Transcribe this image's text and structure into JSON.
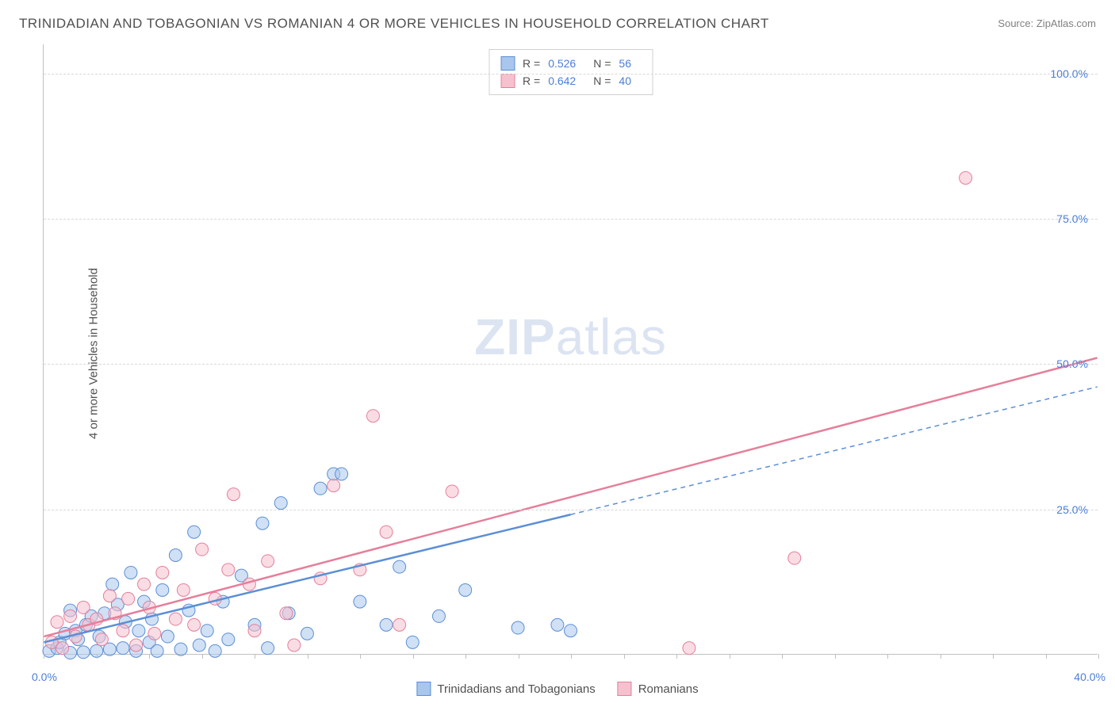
{
  "title": "TRINIDADIAN AND TOBAGONIAN VS ROMANIAN 4 OR MORE VEHICLES IN HOUSEHOLD CORRELATION CHART",
  "source": {
    "label": "Source:",
    "value": "ZipAtlas.com"
  },
  "y_axis_label": "4 or more Vehicles in Household",
  "watermark": {
    "bold": "ZIP",
    "light": "atlas"
  },
  "chart": {
    "type": "scatter",
    "background_color": "#ffffff",
    "grid_color": "#d8d8d8",
    "axis_color": "#c0c0c0",
    "label_color": "#4a7fd8",
    "xlim": [
      0,
      40
    ],
    "ylim": [
      0,
      105
    ],
    "x_ticks": [
      0,
      40
    ],
    "x_tick_labels": [
      "0.0%",
      "40.0%"
    ],
    "x_minor_tick_step": 2,
    "y_ticks": [
      25,
      50,
      75,
      100
    ],
    "y_tick_labels": [
      "25.0%",
      "50.0%",
      "75.0%",
      "100.0%"
    ],
    "marker_radius": 8,
    "marker_opacity": 0.55,
    "line_width": 2.5,
    "series": [
      {
        "name": "Trinidadians and Tobagonians",
        "color_fill": "#a9c6ec",
        "color_stroke": "#5b8fd6",
        "r_value": "0.526",
        "n_value": "56",
        "trend": {
          "x1": 0,
          "y1": 2,
          "x2": 20,
          "y2": 24,
          "x2_ext": 40,
          "y2_ext": 46,
          "dashed_after": 20
        },
        "points": [
          [
            0.2,
            0.5
          ],
          [
            0.5,
            1.0
          ],
          [
            0.6,
            2.0
          ],
          [
            0.8,
            3.5
          ],
          [
            1.0,
            0.2
          ],
          [
            1.2,
            4.0
          ],
          [
            1.3,
            2.5
          ],
          [
            1.5,
            0.3
          ],
          [
            1.6,
            5.0
          ],
          [
            1.8,
            6.5
          ],
          [
            2.0,
            0.5
          ],
          [
            2.1,
            3.0
          ],
          [
            2.3,
            7.0
          ],
          [
            2.5,
            0.8
          ],
          [
            2.6,
            12.0
          ],
          [
            2.8,
            8.5
          ],
          [
            3.0,
            1.0
          ],
          [
            3.1,
            5.5
          ],
          [
            3.3,
            14.0
          ],
          [
            3.5,
            0.5
          ],
          [
            3.6,
            4.0
          ],
          [
            3.8,
            9.0
          ],
          [
            4.0,
            2.0
          ],
          [
            4.1,
            6.0
          ],
          [
            4.3,
            0.5
          ],
          [
            4.5,
            11.0
          ],
          [
            4.7,
            3.0
          ],
          [
            5.0,
            17.0
          ],
          [
            5.2,
            0.8
          ],
          [
            5.5,
            7.5
          ],
          [
            5.7,
            21.0
          ],
          [
            5.9,
            1.5
          ],
          [
            6.2,
            4.0
          ],
          [
            6.5,
            0.5
          ],
          [
            6.8,
            9.0
          ],
          [
            7.0,
            2.5
          ],
          [
            7.5,
            13.5
          ],
          [
            8.0,
            5.0
          ],
          [
            8.3,
            22.5
          ],
          [
            8.5,
            1.0
          ],
          [
            9.0,
            26.0
          ],
          [
            9.3,
            7.0
          ],
          [
            10.0,
            3.5
          ],
          [
            10.5,
            28.5
          ],
          [
            11.0,
            31.0
          ],
          [
            11.3,
            31.0
          ],
          [
            12.0,
            9.0
          ],
          [
            13.0,
            5.0
          ],
          [
            13.5,
            15.0
          ],
          [
            14.0,
            2.0
          ],
          [
            15.0,
            6.5
          ],
          [
            16.0,
            11.0
          ],
          [
            18.0,
            4.5
          ],
          [
            19.5,
            5.0
          ],
          [
            20.0,
            4.0
          ],
          [
            1.0,
            7.5
          ]
        ]
      },
      {
        "name": "Romanians",
        "color_fill": "#f6c1ce",
        "color_stroke": "#e57f9b",
        "r_value": "0.642",
        "n_value": "40",
        "trend": {
          "x1": 0,
          "y1": 3,
          "x2": 40,
          "y2": 51,
          "dashed_after": null
        },
        "points": [
          [
            0.3,
            2.0
          ],
          [
            0.5,
            5.5
          ],
          [
            0.7,
            1.0
          ],
          [
            1.0,
            6.5
          ],
          [
            1.2,
            3.0
          ],
          [
            1.5,
            8.0
          ],
          [
            1.7,
            5.0
          ],
          [
            2.0,
            6.0
          ],
          [
            2.2,
            2.5
          ],
          [
            2.5,
            10.0
          ],
          [
            2.7,
            7.0
          ],
          [
            3.0,
            4.0
          ],
          [
            3.2,
            9.5
          ],
          [
            3.5,
            1.5
          ],
          [
            3.8,
            12.0
          ],
          [
            4.0,
            8.0
          ],
          [
            4.2,
            3.5
          ],
          [
            4.5,
            14.0
          ],
          [
            5.0,
            6.0
          ],
          [
            5.3,
            11.0
          ],
          [
            5.7,
            5.0
          ],
          [
            6.0,
            18.0
          ],
          [
            6.5,
            9.5
          ],
          [
            7.0,
            14.5
          ],
          [
            7.2,
            27.5
          ],
          [
            7.8,
            12.0
          ],
          [
            8.0,
            4.0
          ],
          [
            8.5,
            16.0
          ],
          [
            9.2,
            7.0
          ],
          [
            9.5,
            1.5
          ],
          [
            10.5,
            13.0
          ],
          [
            11.0,
            29.0
          ],
          [
            12.0,
            14.5
          ],
          [
            12.5,
            41.0
          ],
          [
            13.0,
            21.0
          ],
          [
            13.5,
            5.0
          ],
          [
            15.5,
            28.0
          ],
          [
            24.5,
            1.0
          ],
          [
            28.5,
            16.5
          ],
          [
            35.0,
            82.0
          ]
        ]
      }
    ]
  },
  "legend": [
    {
      "label": "Trinidadians and Tobagonians",
      "fill": "#a9c6ec",
      "stroke": "#5b8fd6"
    },
    {
      "label": "Romanians",
      "fill": "#f6c1ce",
      "stroke": "#e57f9b"
    }
  ]
}
